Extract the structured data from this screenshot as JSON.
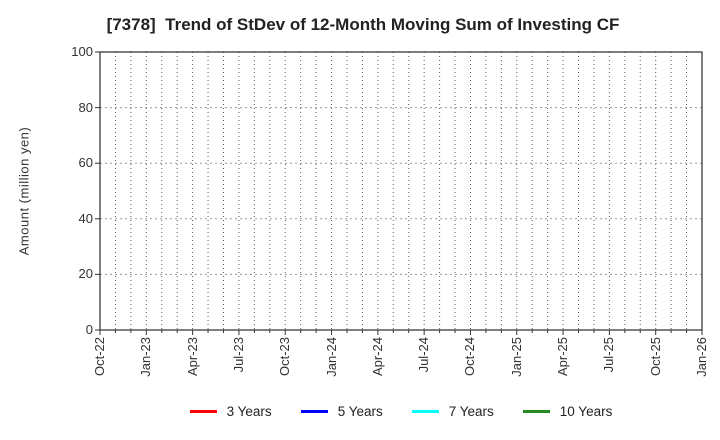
{
  "chart_data": {
    "type": "line",
    "title": "[7378]  Trend of StDev of 12-Month Moving Sum of Investing CF",
    "ylabel": "Amount (million yen)",
    "xlabel": "",
    "ylim": [
      0,
      100
    ],
    "yticks": [
      0,
      20,
      40,
      60,
      80,
      100
    ],
    "x_tick_labels": [
      "Oct-22",
      "Jan-23",
      "Apr-23",
      "Jul-23",
      "Oct-23",
      "Jan-24",
      "Apr-24",
      "Jul-24",
      "Oct-24",
      "Jan-25",
      "Apr-25",
      "Jul-25",
      "Oct-25",
      "Jan-26"
    ],
    "months_total": 39,
    "months_per_labeled_tick": 3,
    "grid": true,
    "legend_position": "bottom",
    "series": [
      {
        "name": "3 Years",
        "color": "#ff0000",
        "values": []
      },
      {
        "name": "5 Years",
        "color": "#0000ff",
        "values": []
      },
      {
        "name": "7 Years",
        "color": "#00ffff",
        "values": []
      },
      {
        "name": "10 Years",
        "color": "#228b22",
        "values": []
      }
    ]
  },
  "colors": {
    "background": "#ffffff",
    "spine": "#2a2a2a",
    "grid_vertical": "#5a5a5a",
    "grid_horizontal": "#9a9a9a",
    "tick": "#333333",
    "text": "#333333",
    "title_text": "#222222"
  }
}
